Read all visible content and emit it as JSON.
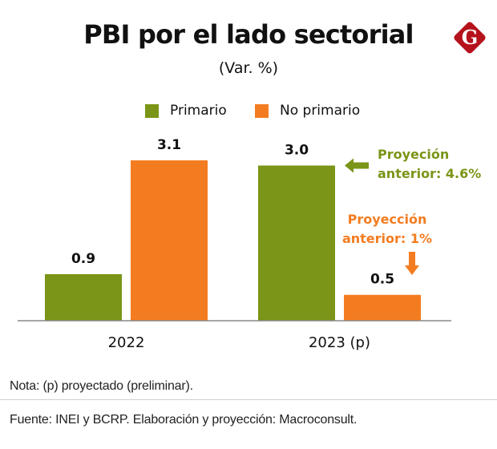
{
  "header": {
    "title": "PBI por el lado sectorial",
    "subtitle": "(Var. %)",
    "logo_letter": "G",
    "logo_color": "#b5121b"
  },
  "legend": [
    {
      "label": "Primario",
      "color": "#7a9518"
    },
    {
      "label": "No primario",
      "color": "#f47c20"
    }
  ],
  "chart_data": {
    "type": "bar",
    "title": "PBI por el lado sectorial",
    "subtitle": "(Var. %)",
    "xlabel": "",
    "ylabel": "",
    "categories": [
      "2022",
      "2023 (p)"
    ],
    "series": [
      {
        "name": "Primario",
        "color": "#7a9518",
        "values": [
          0.9,
          3.0
        ],
        "labels": [
          "0.9",
          "3.0"
        ]
      },
      {
        "name": "No primario",
        "color": "#f47c20",
        "values": [
          3.1,
          0.5
        ],
        "labels": [
          "3.1",
          "0.5"
        ]
      }
    ],
    "ylim": [
      0,
      3.1
    ],
    "grid": false,
    "legend_position": "top-center",
    "annotations": [
      {
        "series": "Primario",
        "category": "2023 (p)",
        "lines": [
          "Proyeción",
          "anterior: 4.6%"
        ],
        "color": "#7a9518",
        "arrow": "left"
      },
      {
        "series": "No primario",
        "category": "2023 (p)",
        "lines": [
          "Proyección",
          "anterior: 1%"
        ],
        "color": "#f47c20",
        "arrow": "down"
      }
    ]
  },
  "footer": {
    "note": "Nota: (p) proyectado (preliminar).",
    "source": "Fuente: INEI y BCRP. Elaboración y proyección: Macroconsult."
  }
}
